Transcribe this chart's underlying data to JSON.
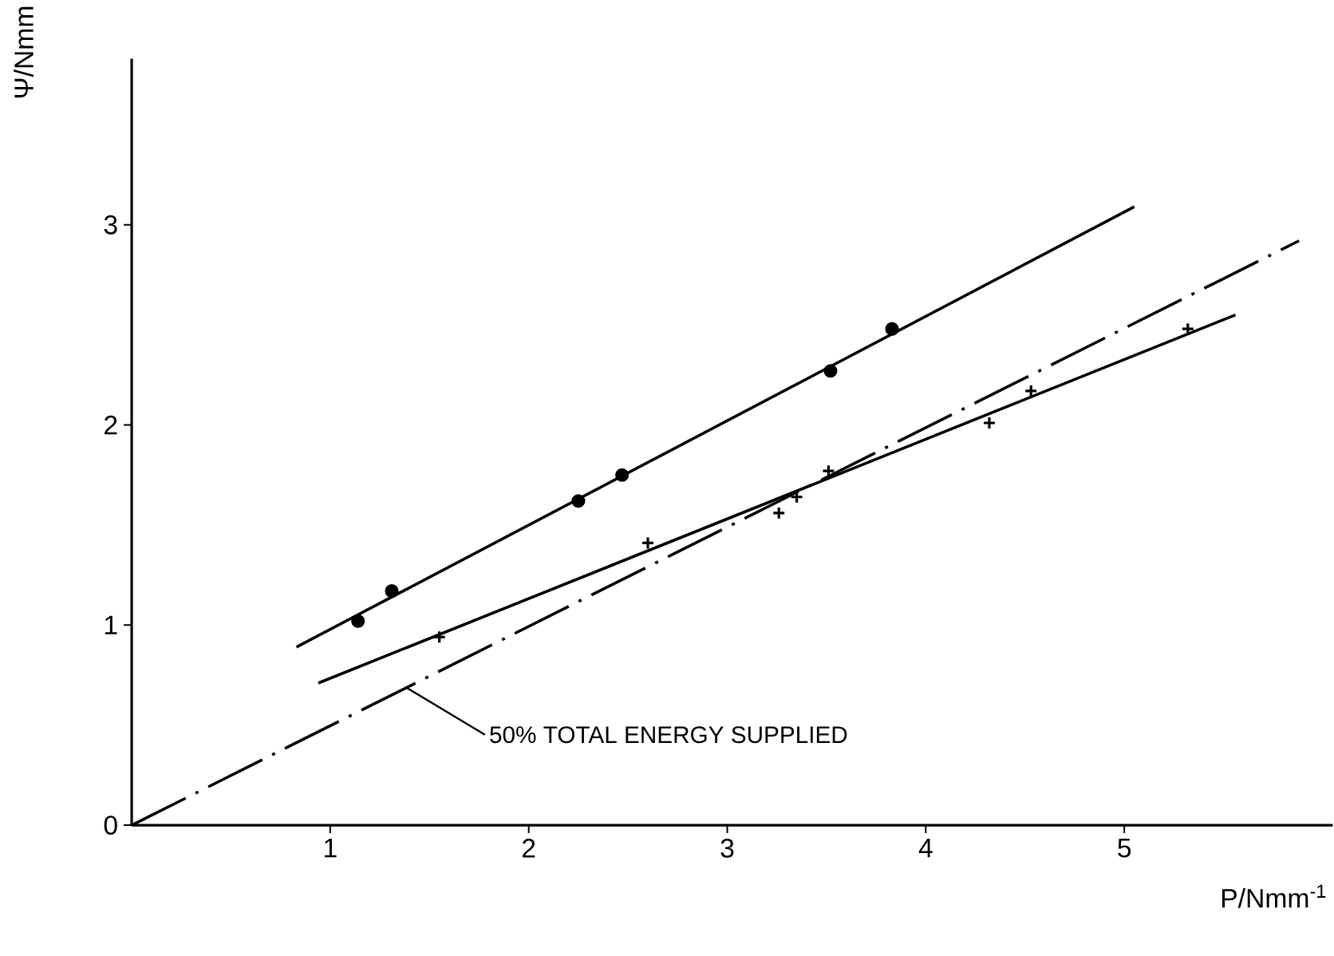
{
  "chart_data": {
    "type": "scatter",
    "xlabel": "P/Nmm$^{-1}$",
    "ylabel": "Ψ/Nmm",
    "xlim": [
      0,
      6.05
    ],
    "ylim": [
      0,
      3.83
    ],
    "xticks": [
      1,
      2,
      3,
      4,
      5
    ],
    "yticks": [
      0,
      1,
      2,
      3
    ],
    "grid": false,
    "series": [
      {
        "marker": "circle",
        "color": "#000000",
        "x": [
          1.14,
          1.31,
          2.25,
          2.47,
          3.52,
          3.83
        ],
        "values": [
          1.02,
          1.17,
          1.62,
          1.75,
          2.27,
          2.48
        ]
      },
      {
        "marker": "cross",
        "color": "#000000",
        "x": [
          1.55,
          2.6,
          3.26,
          3.35,
          3.51,
          4.32,
          4.53,
          5.32
        ],
        "values": [
          0.94,
          1.41,
          1.56,
          1.64,
          1.77,
          2.01,
          2.17,
          2.48
        ]
      },
      {
        "type": "line",
        "marker": "none",
        "line_style": "solid",
        "color": "#000000",
        "x": [
          0.83,
          5.05
        ],
        "values": [
          0.89,
          3.09
        ]
      },
      {
        "type": "line",
        "marker": "none",
        "line_style": "solid",
        "color": "#000000",
        "x": [
          0.94,
          5.56
        ],
        "values": [
          0.71,
          2.55
        ]
      },
      {
        "type": "line",
        "marker": "none",
        "line_style": "dashdot",
        "color": "#000000",
        "x": [
          0,
          5.88
        ],
        "values": [
          0,
          2.92
        ]
      }
    ],
    "annotations": [
      {
        "text": "50% TOTAL ENERGY SUPPLIED",
        "x": 1.38,
        "y": 0.69
      }
    ]
  }
}
